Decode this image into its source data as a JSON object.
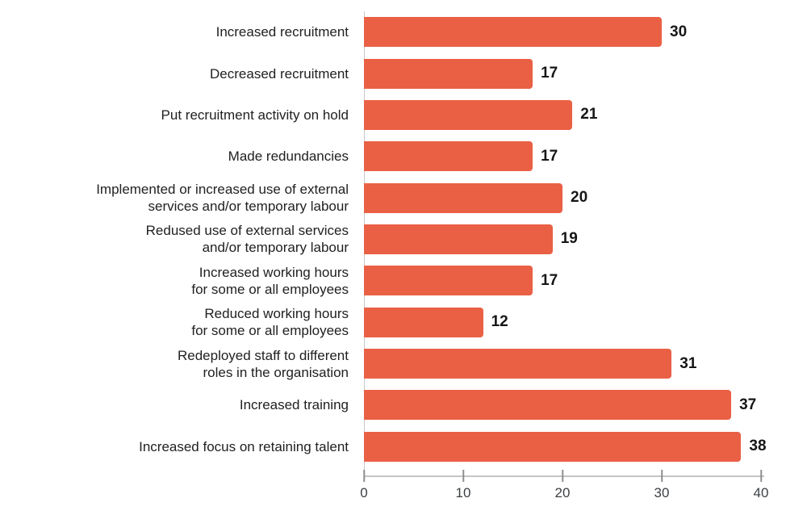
{
  "chart_data": {
    "type": "bar",
    "orientation": "horizontal",
    "title": "",
    "xlabel": "",
    "ylabel": "",
    "categories": [
      "Increased recruitment",
      "Decreased recruitment",
      "Put recruitment activity on hold",
      "Made redundancies",
      "Implemented or increased use of external\nservices and/or temporary labour",
      "Redused use of external services\nand/or temporary labour",
      "Increased working hours\nfor some or all employees",
      "Reduced working hours\nfor some or all employees",
      "Redeployed staff to different\nroles in the organisation",
      "Increased training",
      "Increased focus on retaining talent"
    ],
    "values": [
      30,
      17,
      21,
      17,
      20,
      19,
      17,
      12,
      31,
      37,
      38
    ],
    "xlim": [
      0,
      40
    ],
    "x_ticks": [
      0,
      10,
      20,
      30,
      40
    ],
    "grid": false,
    "legend": false,
    "colors": {
      "bar": "#EA6045",
      "baseline": "#c9c9c9",
      "axis_line": "#c4c4c4",
      "tick": "#8f8f8f",
      "category_label": "#212121",
      "value_label": "#161616",
      "tick_label": "#3c4043"
    }
  }
}
